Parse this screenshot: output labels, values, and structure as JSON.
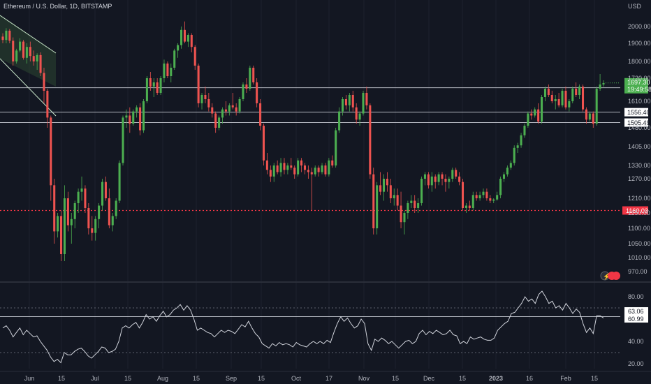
{
  "header": {
    "symbol_title": "Ethereum / U.S. Dollar, 1D, BITSTAMP",
    "currency": "USD"
  },
  "colors": {
    "background": "#131722",
    "up": "#26a69a",
    "up_bright": "#4caf50",
    "down": "#ef5350",
    "rsi_line": "#d1d4dc",
    "level_line": "#d1d4dc",
    "support_line": "#f23645",
    "channel_fill": "#2e4a32"
  },
  "chart_data": [
    {
      "type": "candlestick",
      "price_axis_ticks": [
        "2000.00",
        "1900.00",
        "1800.00",
        "1720.00",
        "1610.00",
        "1480.00",
        "1405.00",
        "1330.00",
        "1270.00",
        "1210.00",
        "1150.00",
        "1100.00",
        "1050.00",
        "1010.00",
        "970.00"
      ],
      "time_axis_ticks": [
        "Jun",
        "15",
        "Jul",
        "15",
        "Aug",
        "15",
        "Sep",
        "15",
        "Oct",
        "17",
        "Nov",
        "15",
        "Dec",
        "15",
        "2023",
        "16",
        "Feb",
        "15"
      ],
      "horizontal_levels": [
        {
          "label": "1674.55",
          "value": 1674.55
        },
        {
          "label": "1556.40",
          "value": 1556.4
        },
        {
          "label": "1505.49",
          "value": 1505.49
        }
      ],
      "support_level": {
        "label": "1160.03",
        "value": 1160.03
      },
      "last_price": {
        "label": "1697.30",
        "countdown": "19:49:58",
        "value": 1697.3
      },
      "ohlc": [
        [
          1940,
          1960,
          1900,
          1920
        ],
        [
          1920,
          1990,
          1900,
          1975
        ],
        [
          1975,
          1985,
          1900,
          1915
        ],
        [
          1915,
          1935,
          1780,
          1800
        ],
        [
          1800,
          1870,
          1790,
          1860
        ],
        [
          1860,
          1930,
          1850,
          1910
        ],
        [
          1910,
          1920,
          1810,
          1820
        ],
        [
          1820,
          1900,
          1790,
          1880
        ],
        [
          1880,
          1910,
          1800,
          1830
        ],
        [
          1830,
          1860,
          1780,
          1800
        ],
        [
          1800,
          1845,
          1760,
          1835
        ],
        [
          1835,
          1850,
          1730,
          1745
        ],
        [
          1745,
          1770,
          1600,
          1660
        ],
        [
          1660,
          1670,
          1480,
          1530
        ],
        [
          1530,
          1540,
          1200,
          1250
        ],
        [
          1250,
          1270,
          1050,
          1090
        ],
        [
          1090,
          1150,
          1070,
          1140
        ],
        [
          1140,
          1160,
          1000,
          1020
        ],
        [
          1020,
          1250,
          1000,
          1210
        ],
        [
          1210,
          1230,
          1090,
          1110
        ],
        [
          1110,
          1150,
          1050,
          1130
        ],
        [
          1130,
          1200,
          1100,
          1190
        ],
        [
          1190,
          1240,
          1150,
          1230
        ],
        [
          1230,
          1280,
          1200,
          1240
        ],
        [
          1240,
          1250,
          1150,
          1170
        ],
        [
          1170,
          1190,
          1080,
          1100
        ],
        [
          1100,
          1140,
          1060,
          1085
        ],
        [
          1085,
          1140,
          1060,
          1130
        ],
        [
          1130,
          1190,
          1100,
          1180
        ],
        [
          1180,
          1270,
          1160,
          1260
        ],
        [
          1260,
          1280,
          1200,
          1210
        ],
        [
          1210,
          1240,
          1100,
          1110
        ],
        [
          1110,
          1150,
          1090,
          1140
        ],
        [
          1140,
          1210,
          1130,
          1200
        ],
        [
          1200,
          1350,
          1190,
          1340
        ],
        [
          1340,
          1540,
          1330,
          1530
        ],
        [
          1530,
          1570,
          1480,
          1540
        ],
        [
          1540,
          1580,
          1460,
          1500
        ],
        [
          1500,
          1570,
          1490,
          1560
        ],
        [
          1560,
          1590,
          1530,
          1580
        ],
        [
          1580,
          1600,
          1450,
          1470
        ],
        [
          1470,
          1620,
          1460,
          1610
        ],
        [
          1610,
          1730,
          1600,
          1720
        ],
        [
          1720,
          1750,
          1660,
          1680
        ],
        [
          1680,
          1720,
          1630,
          1700
        ],
        [
          1700,
          1720,
          1640,
          1650
        ],
        [
          1650,
          1730,
          1640,
          1720
        ],
        [
          1720,
          1810,
          1700,
          1790
        ],
        [
          1790,
          1800,
          1720,
          1730
        ],
        [
          1730,
          1790,
          1700,
          1770
        ],
        [
          1770,
          1870,
          1760,
          1860
        ],
        [
          1860,
          1900,
          1820,
          1890
        ],
        [
          1890,
          2000,
          1870,
          1980
        ],
        [
          1980,
          2030,
          1900,
          1910
        ],
        [
          1910,
          1960,
          1880,
          1950
        ],
        [
          1950,
          1960,
          1850,
          1880
        ],
        [
          1880,
          1890,
          1760,
          1780
        ],
        [
          1780,
          1790,
          1580,
          1600
        ],
        [
          1600,
          1650,
          1570,
          1640
        ],
        [
          1640,
          1680,
          1600,
          1620
        ],
        [
          1620,
          1650,
          1560,
          1580
        ],
        [
          1580,
          1600,
          1530,
          1550
        ],
        [
          1550,
          1560,
          1460,
          1480
        ],
        [
          1480,
          1540,
          1470,
          1530
        ],
        [
          1530,
          1580,
          1500,
          1570
        ],
        [
          1570,
          1610,
          1540,
          1560
        ],
        [
          1560,
          1600,
          1540,
          1590
        ],
        [
          1590,
          1650,
          1570,
          1580
        ],
        [
          1580,
          1600,
          1540,
          1560
        ],
        [
          1560,
          1630,
          1550,
          1620
        ],
        [
          1620,
          1700,
          1610,
          1690
        ],
        [
          1690,
          1720,
          1650,
          1670
        ],
        [
          1670,
          1780,
          1660,
          1770
        ],
        [
          1770,
          1780,
          1690,
          1700
        ],
        [
          1700,
          1720,
          1580,
          1600
        ],
        [
          1600,
          1620,
          1470,
          1490
        ],
        [
          1490,
          1500,
          1330,
          1350
        ],
        [
          1350,
          1380,
          1290,
          1310
        ],
        [
          1310,
          1330,
          1260,
          1280
        ],
        [
          1280,
          1340,
          1260,
          1330
        ],
        [
          1330,
          1350,
          1290,
          1300
        ],
        [
          1300,
          1360,
          1280,
          1340
        ],
        [
          1340,
          1360,
          1290,
          1310
        ],
        [
          1310,
          1340,
          1290,
          1330
        ],
        [
          1330,
          1360,
          1310,
          1320
        ],
        [
          1320,
          1330,
          1270,
          1290
        ],
        [
          1290,
          1360,
          1280,
          1350
        ],
        [
          1350,
          1360,
          1300,
          1330
        ],
        [
          1330,
          1340,
          1290,
          1310
        ],
        [
          1310,
          1330,
          1270,
          1300
        ],
        [
          1300,
          1320,
          1160,
          1290
        ],
        [
          1290,
          1330,
          1280,
          1320
        ],
        [
          1320,
          1330,
          1280,
          1300
        ],
        [
          1300,
          1340,
          1290,
          1330
        ],
        [
          1330,
          1340,
          1280,
          1290
        ],
        [
          1290,
          1360,
          1280,
          1350
        ],
        [
          1350,
          1370,
          1320,
          1330
        ],
        [
          1330,
          1480,
          1320,
          1470
        ],
        [
          1470,
          1580,
          1460,
          1560
        ],
        [
          1560,
          1630,
          1540,
          1620
        ],
        [
          1620,
          1640,
          1570,
          1590
        ],
        [
          1590,
          1650,
          1560,
          1640
        ],
        [
          1640,
          1660,
          1560,
          1580
        ],
        [
          1580,
          1600,
          1500,
          1520
        ],
        [
          1520,
          1560,
          1490,
          1550
        ],
        [
          1550,
          1660,
          1540,
          1650
        ],
        [
          1650,
          1680,
          1570,
          1590
        ],
        [
          1590,
          1600,
          1270,
          1290
        ],
        [
          1290,
          1320,
          1080,
          1100
        ],
        [
          1100,
          1260,
          1080,
          1250
        ],
        [
          1250,
          1300,
          1220,
          1230
        ],
        [
          1230,
          1290,
          1200,
          1270
        ],
        [
          1270,
          1300,
          1230,
          1250
        ],
        [
          1250,
          1270,
          1190,
          1210
        ],
        [
          1210,
          1240,
          1180,
          1220
        ],
        [
          1220,
          1240,
          1160,
          1180
        ],
        [
          1180,
          1230,
          1100,
          1120
        ],
        [
          1120,
          1160,
          1080,
          1150
        ],
        [
          1150,
          1200,
          1130,
          1190
        ],
        [
          1190,
          1220,
          1170,
          1200
        ],
        [
          1200,
          1220,
          1150,
          1170
        ],
        [
          1170,
          1210,
          1150,
          1190
        ],
        [
          1190,
          1280,
          1180,
          1270
        ],
        [
          1270,
          1300,
          1250,
          1290
        ],
        [
          1290,
          1300,
          1240,
          1250
        ],
        [
          1250,
          1300,
          1230,
          1280
        ],
        [
          1280,
          1290,
          1240,
          1260
        ],
        [
          1260,
          1300,
          1250,
          1290
        ],
        [
          1290,
          1300,
          1250,
          1270
        ],
        [
          1270,
          1290,
          1230,
          1260
        ],
        [
          1260,
          1280,
          1240,
          1270
        ],
        [
          1270,
          1320,
          1260,
          1310
        ],
        [
          1310,
          1320,
          1270,
          1280
        ],
        [
          1280,
          1300,
          1250,
          1260
        ],
        [
          1260,
          1270,
          1160,
          1170
        ],
        [
          1170,
          1190,
          1150,
          1180
        ],
        [
          1180,
          1200,
          1160,
          1170
        ],
        [
          1170,
          1230,
          1160,
          1220
        ],
        [
          1220,
          1230,
          1200,
          1210
        ],
        [
          1210,
          1230,
          1200,
          1220
        ],
        [
          1220,
          1240,
          1210,
          1230
        ],
        [
          1230,
          1240,
          1200,
          1210
        ],
        [
          1210,
          1220,
          1190,
          1200
        ],
        [
          1200,
          1210,
          1190,
          1205
        ],
        [
          1205,
          1230,
          1200,
          1220
        ],
        [
          1220,
          1280,
          1210,
          1270
        ],
        [
          1270,
          1300,
          1260,
          1290
        ],
        [
          1290,
          1330,
          1280,
          1320
        ],
        [
          1320,
          1350,
          1310,
          1340
        ],
        [
          1340,
          1410,
          1330,
          1400
        ],
        [
          1400,
          1420,
          1380,
          1410
        ],
        [
          1410,
          1460,
          1400,
          1450
        ],
        [
          1450,
          1500,
          1440,
          1490
        ],
        [
          1490,
          1560,
          1480,
          1550
        ],
        [
          1550,
          1570,
          1520,
          1540
        ],
        [
          1540,
          1580,
          1530,
          1570
        ],
        [
          1570,
          1600,
          1500,
          1510
        ],
        [
          1510,
          1640,
          1500,
          1630
        ],
        [
          1630,
          1680,
          1610,
          1670
        ],
        [
          1670,
          1690,
          1630,
          1640
        ],
        [
          1640,
          1660,
          1600,
          1610
        ],
        [
          1610,
          1640,
          1570,
          1620
        ],
        [
          1620,
          1650,
          1580,
          1590
        ],
        [
          1590,
          1670,
          1580,
          1660
        ],
        [
          1660,
          1680,
          1570,
          1580
        ],
        [
          1580,
          1620,
          1560,
          1610
        ],
        [
          1610,
          1680,
          1600,
          1670
        ],
        [
          1670,
          1700,
          1630,
          1640
        ],
        [
          1640,
          1690,
          1620,
          1680
        ],
        [
          1680,
          1690,
          1560,
          1570
        ],
        [
          1570,
          1580,
          1500,
          1520
        ],
        [
          1520,
          1560,
          1510,
          1550
        ],
        [
          1550,
          1560,
          1480,
          1500
        ],
        [
          1500,
          1680,
          1490,
          1670
        ],
        [
          1670,
          1740,
          1660,
          1690
        ],
        [
          1690,
          1710,
          1680,
          1697
        ]
      ]
    },
    {
      "type": "line",
      "name": "RSI",
      "value_axis_ticks": [
        "80.00",
        "60.00",
        "40.00",
        "20.00"
      ],
      "levels": [
        70,
        50,
        30
      ],
      "current_values": [
        {
          "label": "63.06",
          "value": 63.06
        },
        {
          "label": "60.99",
          "value": 60.99
        }
      ],
      "values": [
        52,
        54,
        50,
        44,
        48,
        52,
        46,
        50,
        47,
        44,
        45,
        40,
        36,
        32,
        26,
        22,
        24,
        21,
        30,
        28,
        28,
        31,
        33,
        34,
        31,
        27,
        25,
        28,
        31,
        35,
        34,
        30,
        31,
        33,
        40,
        52,
        54,
        52,
        55,
        57,
        52,
        57,
        64,
        60,
        62,
        58,
        63,
        67,
        62,
        64,
        68,
        70,
        73,
        68,
        72,
        68,
        60,
        50,
        52,
        50,
        48,
        47,
        44,
        47,
        50,
        48,
        50,
        49,
        47,
        51,
        55,
        53,
        58,
        52,
        47,
        44,
        38,
        36,
        34,
        38,
        36,
        39,
        37,
        38,
        37,
        35,
        39,
        37,
        36,
        35,
        38,
        40,
        38,
        40,
        38,
        41,
        39,
        48,
        56,
        62,
        58,
        61,
        56,
        52,
        54,
        60,
        56,
        38,
        32,
        42,
        40,
        43,
        41,
        38,
        40,
        37,
        34,
        37,
        40,
        41,
        38,
        40,
        47,
        50,
        46,
        49,
        47,
        50,
        48,
        46,
        47,
        50,
        46,
        45,
        38,
        40,
        38,
        44,
        42,
        43,
        44,
        42,
        41,
        41,
        43,
        50,
        53,
        56,
        58,
        65,
        66,
        70,
        74,
        80,
        76,
        78,
        74,
        82,
        85,
        80,
        74,
        76,
        70,
        72,
        68,
        74,
        70,
        65,
        69,
        66,
        56,
        48,
        52,
        47,
        63,
        63,
        61
      ]
    }
  ]
}
